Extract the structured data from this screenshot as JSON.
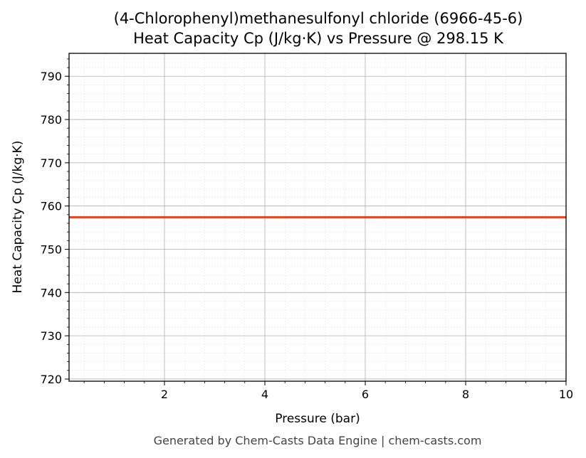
{
  "chart_data": {
    "type": "line",
    "title_line1": "(4-Chlorophenyl)methanesulfonyl chloride (6966-45-6)",
    "title_line2": "Heat Capacity Cp (J/kg·K) vs Pressure @ 298.15 K",
    "xlabel": "Pressure (bar)",
    "ylabel": "Heat Capacity Cp (J/kg·K)",
    "xlim": [
      0.1,
      10
    ],
    "ylim": [
      719.5,
      795.3
    ],
    "xticks": [
      2,
      4,
      6,
      8,
      10
    ],
    "yticks": [
      720,
      730,
      740,
      750,
      760,
      770,
      780,
      790
    ],
    "grid": true,
    "series": [
      {
        "color": "#cc5529",
        "x": [
          0.1,
          10
        ],
        "y": [
          757.4,
          757.4
        ]
      }
    ],
    "footer": "Generated by Chem-Casts Data Engine | chem-casts.com"
  }
}
